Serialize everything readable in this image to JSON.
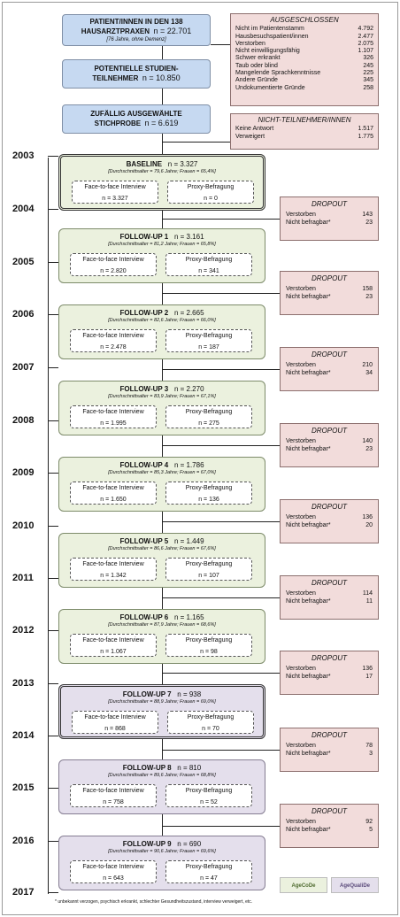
{
  "top_boxes": [
    {
      "line1": "PATIENT/INNEN IN DEN 138",
      "line2": "HAUSARZTPRAXEN",
      "n": "n = 22.701",
      "note": "[76 Jahre, ohne Demenz]"
    },
    {
      "line1": "POTENTIELLE STUDIEN-",
      "line2": "TEILNEHMER",
      "n": "n = 10.850"
    },
    {
      "line1": "ZUFÄLLIG AUSGEWÄHLTE",
      "line2": "STICHPROBE",
      "n": "n = 6.619"
    }
  ],
  "ausgeschlossen": {
    "title": "AUSGESCHLOSSEN",
    "rows": [
      {
        "label": "Nicht im Patientenstamm",
        "value": "4.792"
      },
      {
        "label": "Hausbesuchspatient/innen",
        "value": "2.477"
      },
      {
        "label": "Verstorben",
        "value": "2.075"
      },
      {
        "label": "Nicht einwilligungsfähig",
        "value": "1.107"
      },
      {
        "label": "Schwer erkrankt",
        "value": "326"
      },
      {
        "label": "Taub oder blind",
        "value": "245"
      },
      {
        "label": "Mangelende Sprachkenntnisse",
        "value": "225"
      },
      {
        "label": "Andere Gründe",
        "value": "345"
      },
      {
        "label": "Undokumentierte Gründe",
        "value": "258"
      }
    ]
  },
  "nicht_teilnehmer": {
    "title": "NICHT-TEILNEHMER/INNEN",
    "rows": [
      {
        "label": "Keine Antwort",
        "value": "1.517"
      },
      {
        "label": "Verweigert",
        "value": "1.775"
      }
    ]
  },
  "years": [
    "2003",
    "2004",
    "2005",
    "2006",
    "2007",
    "2008",
    "2009",
    "2010",
    "2011",
    "2012",
    "2013",
    "2014",
    "2015",
    "2016",
    "2017"
  ],
  "waves": [
    {
      "title": "BASELINE",
      "n": "n = 3.327",
      "sub": "[Durchschnittsalter = 79,6 Jahre; Frauen = 65,4%]",
      "face_label": "Face-to-face Interview",
      "face_n": "n = 3.327",
      "proxy_label": "Proxy-Befragung",
      "proxy_n": "n = 0"
    },
    {
      "title": "FOLLOW-UP 1",
      "n": "n = 3.161",
      "sub": "[Durchschnittsalter = 81,2 Jahre; Frauen = 65,8%]",
      "face_label": "Face-to-face Interview",
      "face_n": "n = 2.820",
      "proxy_label": "Proxy-Befragung",
      "proxy_n": "n = 341"
    },
    {
      "title": "FOLLOW-UP 2",
      "n": "n = 2.665",
      "sub": "[Durchschnittsalter = 82,6 Jahre; Frauen = 66,0%]",
      "face_label": "Face-to-face Interview",
      "face_n": "n = 2.478",
      "proxy_label": "Proxy-Befragung",
      "proxy_n": "n = 187"
    },
    {
      "title": "FOLLOW-UP 3",
      "n": "n = 2.270",
      "sub": "[Durchschnittsalter = 83,9 Jahre; Frauen = 67,1%]",
      "face_label": "Face-to-face Interview",
      "face_n": "n = 1.995",
      "proxy_label": "Proxy-Befragung",
      "proxy_n": "n = 275"
    },
    {
      "title": "FOLLOW-UP 4",
      "n": "n = 1.786",
      "sub": "[Durchschnittsalter = 85,3 Jahre; Frauen = 67,0%]",
      "face_label": "Face-to-face Interview",
      "face_n": "n = 1.650",
      "proxy_label": "Proxy-Befragung",
      "proxy_n": "n = 136"
    },
    {
      "title": "FOLLOW-UP 5",
      "n": "n = 1.449",
      "sub": "[Durchschnittsalter = 86,6 Jahre; Frauen = 67,6%]",
      "face_label": "Face-to-face Interview",
      "face_n": "n = 1.342",
      "proxy_label": "Proxy-Befragung",
      "proxy_n": "n = 107"
    },
    {
      "title": "FOLLOW-UP 6",
      "n": "n = 1.165",
      "sub": "[Durchschnittsalter = 87,9 Jahre; Frauen = 68,6%]",
      "face_label": "Face-to-face Interview",
      "face_n": "n = 1.067",
      "proxy_label": "Proxy-Befragung",
      "proxy_n": "n = 98"
    },
    {
      "title": "FOLLOW-UP 7",
      "n": "n = 938",
      "sub": "[Durchschnittsalter = 88,9 Jahre; Frauen = 69,0%]",
      "face_label": "Face-to-face Interview",
      "face_n": "n = 868",
      "proxy_label": "Proxy-Befragung",
      "proxy_n": "n = 70"
    },
    {
      "title": "FOLLOW-UP 8",
      "n": "n = 810",
      "sub": "[Durchschnittsalter = 89,6 Jahre; Frauen = 68,8%]",
      "face_label": "Face-to-face Interview",
      "face_n": "n = 758",
      "proxy_label": "Proxy-Befragung",
      "proxy_n": "n = 52"
    },
    {
      "title": "FOLLOW-UP 9",
      "n": "n = 690",
      "sub": "[Durchschnittsalter = 90,6 Jahre; Frauen = 69,6%]",
      "face_label": "Face-to-face Interview",
      "face_n": "n = 643",
      "proxy_label": "Proxy-Befragung",
      "proxy_n": "n = 47"
    }
  ],
  "dropouts": [
    {
      "title": "DROPOUT",
      "verstorben_label": "Verstorben",
      "verstorben": "143",
      "nicht_label": "Nicht befragbar*",
      "nicht": "23"
    },
    {
      "title": "DROPOUT",
      "verstorben_label": "Verstorben",
      "verstorben": "158",
      "nicht_label": "Nicht befragbar*",
      "nicht": "23"
    },
    {
      "title": "DROPOUT",
      "verstorben_label": "Verstorben",
      "verstorben": "210",
      "nicht_label": "Nicht befragbar*",
      "nicht": "34"
    },
    {
      "title": "DROPOUT",
      "verstorben_label": "Verstorben",
      "verstorben": "140",
      "nicht_label": "Nicht befragbar*",
      "nicht": "23"
    },
    {
      "title": "DROPOUT",
      "verstorben_label": "Verstorben",
      "verstorben": "136",
      "nicht_label": "Nicht befragbar*",
      "nicht": "20"
    },
    {
      "title": "DROPOUT",
      "verstorben_label": "Verstorben",
      "verstorben": "114",
      "nicht_label": "Nicht befragbar*",
      "nicht": "11"
    },
    {
      "title": "DROPOUT",
      "verstorben_label": "Verstorben",
      "verstorben": "136",
      "nicht_label": "Nicht befragbar*",
      "nicht": "17"
    },
    {
      "title": "DROPOUT",
      "verstorben_label": "Verstorben",
      "verstorben": "78",
      "nicht_label": "Nicht befragbar*",
      "nicht": "3"
    },
    {
      "title": "DROPOUT",
      "verstorben_label": "Verstorben",
      "verstorben": "92",
      "nicht_label": "Nicht befragbar*",
      "nicht": "5"
    }
  ],
  "logos": [
    "AgeCoDe",
    "AgeQualiDe"
  ],
  "footnote": "* unbekannt verzogen, psychisch erkrankt, schlechter Gesundheitszustand, interview verweigert, etc.",
  "colors": {
    "blue_box": "#c6d9f1",
    "pink_box": "#f2dcdb",
    "green_wave": "#ebf1de",
    "purple_wave": "#e4dfec"
  }
}
